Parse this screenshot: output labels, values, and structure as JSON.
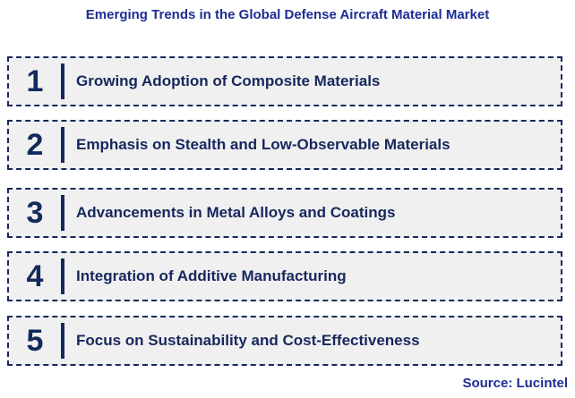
{
  "title": "Emerging Trends in the Global Defense Aircraft Material Market",
  "trends": [
    {
      "number": "1",
      "label": "Growing Adoption of Composite Materials"
    },
    {
      "number": "2",
      "label": "Emphasis on Stealth and Low-Observable Materials"
    },
    {
      "number": "3",
      "label": "Advancements in Metal Alloys and Coatings"
    },
    {
      "number": "4",
      "label": "Integration of Additive Manufacturing"
    },
    {
      "number": "5",
      "label": "Focus on Sustainability and Cost-Effectiveness"
    }
  ],
  "source_note": "Source: Lucintel",
  "colors": {
    "title_blue": "#1c2d94",
    "item_navy": "#17275e",
    "number_navy": "#122a5c",
    "card_background": "#f0f0f0",
    "border_navy": "#16295e",
    "page_background": "#ffffff"
  }
}
